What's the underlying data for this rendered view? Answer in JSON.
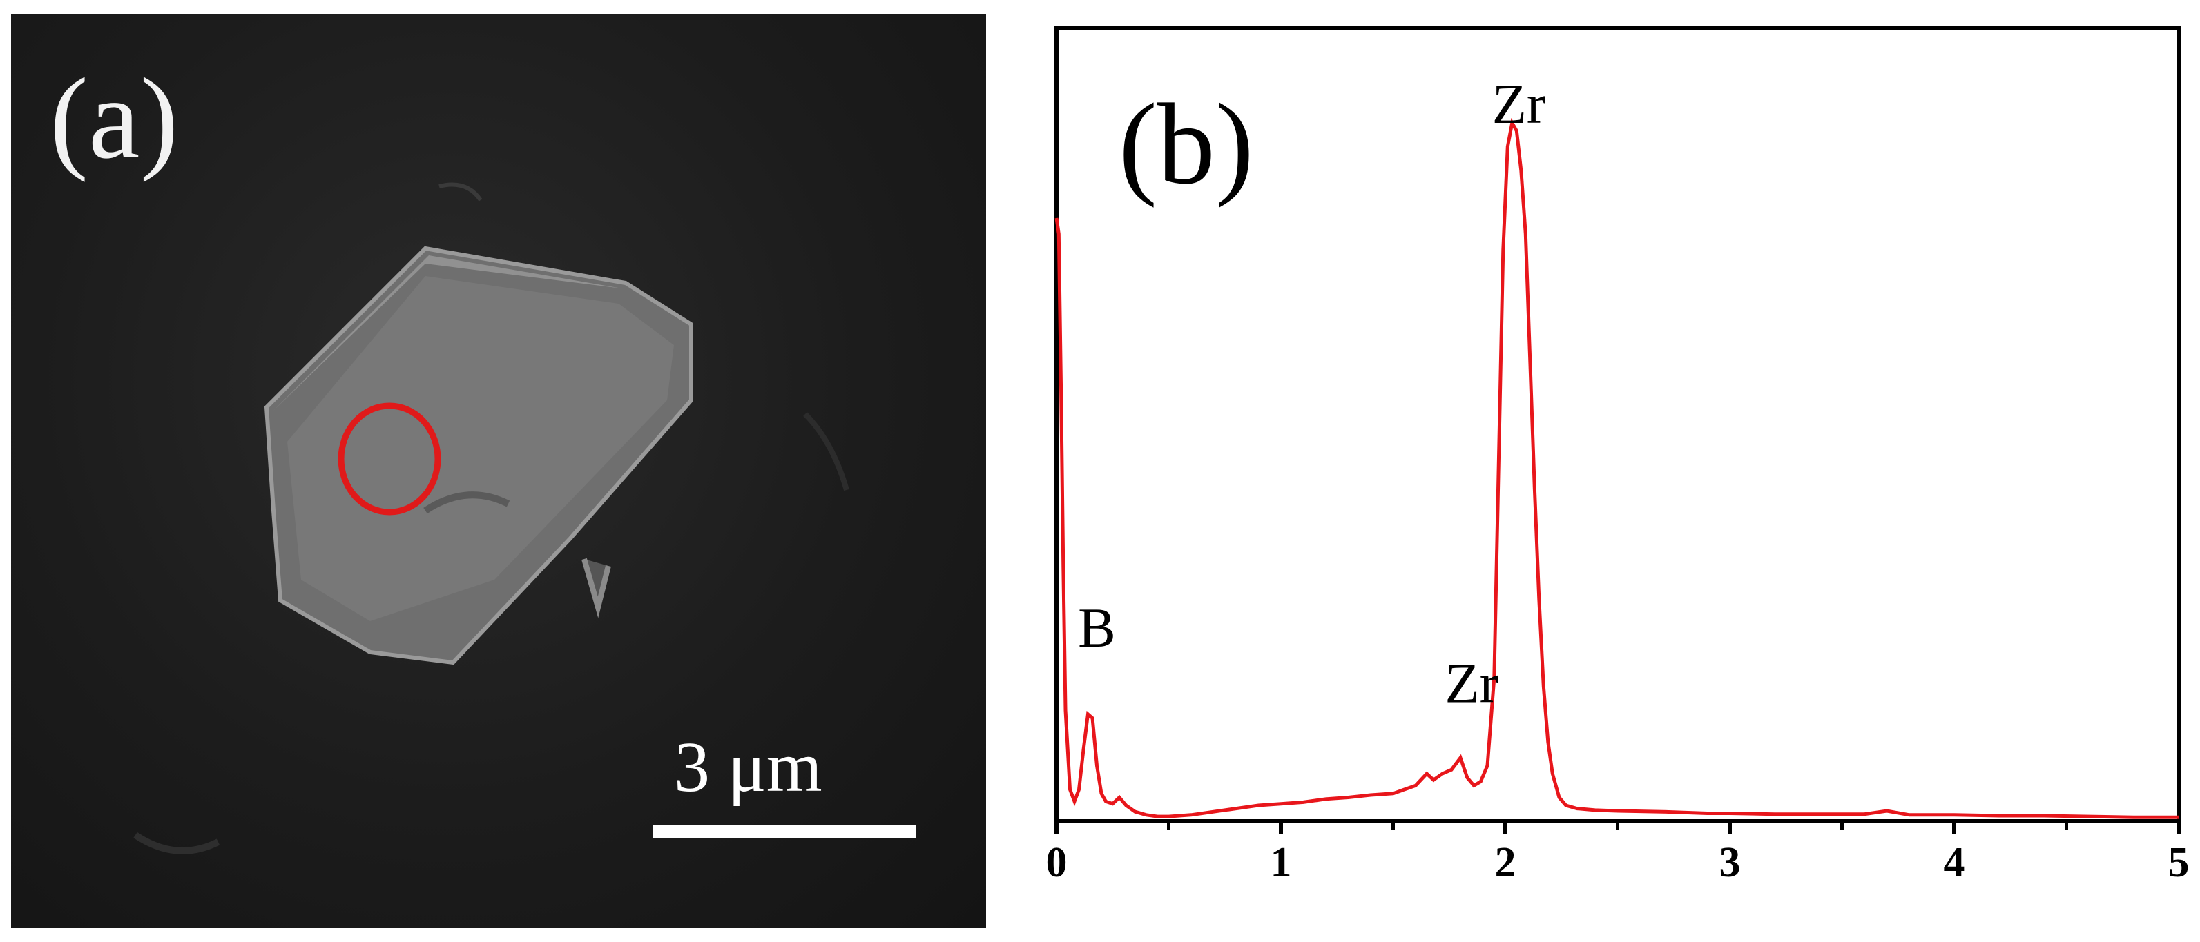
{
  "panel_a": {
    "label": "(a)",
    "scale_bar_text": "3 μm",
    "highlight_color": "#e01a1a"
  },
  "chart_data": {
    "type": "line",
    "panel_label": "(b)",
    "xlabel": "",
    "ylabel": "",
    "xlim": [
      0,
      5
    ],
    "ylim": [
      0,
      1.0
    ],
    "x_ticks": [
      "0",
      "1",
      "2",
      "3",
      "4",
      "5"
    ],
    "line_color": "#e8161b",
    "peak_labels": [
      {
        "text": "B",
        "x": 0.18,
        "y": 0.22
      },
      {
        "text": "Zr",
        "x": 1.85,
        "y": 0.15
      },
      {
        "text": "Zr",
        "x": 2.06,
        "y": 0.88
      }
    ],
    "series": [
      {
        "x": [
          0.0,
          0.01,
          0.02,
          0.03,
          0.04,
          0.06,
          0.08,
          0.1,
          0.12,
          0.14,
          0.16,
          0.18,
          0.2,
          0.22,
          0.25,
          0.28,
          0.31,
          0.35,
          0.4,
          0.45,
          0.5,
          0.6,
          0.7,
          0.8,
          0.9,
          1.0,
          1.1,
          1.2,
          1.3,
          1.4,
          1.5,
          1.55,
          1.6,
          1.65,
          1.68,
          1.72,
          1.76,
          1.8,
          1.83,
          1.86,
          1.89,
          1.92,
          1.95,
          1.97,
          1.99,
          2.01,
          2.03,
          2.05,
          2.07,
          2.09,
          2.11,
          2.13,
          2.15,
          2.17,
          2.19,
          2.21,
          2.24,
          2.27,
          2.32,
          2.4,
          2.5,
          2.7,
          2.9,
          3.0,
          3.2,
          3.4,
          3.6,
          3.7,
          3.8,
          4.0,
          4.2,
          4.4,
          4.6,
          4.8,
          5.0
        ],
        "y": [
          0.76,
          0.74,
          0.55,
          0.32,
          0.14,
          0.04,
          0.025,
          0.04,
          0.09,
          0.135,
          0.13,
          0.07,
          0.035,
          0.025,
          0.022,
          0.03,
          0.02,
          0.012,
          0.008,
          0.006,
          0.006,
          0.008,
          0.012,
          0.016,
          0.02,
          0.022,
          0.024,
          0.028,
          0.03,
          0.033,
          0.035,
          0.04,
          0.045,
          0.06,
          0.052,
          0.06,
          0.065,
          0.08,
          0.055,
          0.045,
          0.05,
          0.07,
          0.18,
          0.45,
          0.72,
          0.85,
          0.88,
          0.87,
          0.82,
          0.74,
          0.58,
          0.42,
          0.28,
          0.17,
          0.1,
          0.06,
          0.03,
          0.02,
          0.016,
          0.014,
          0.013,
          0.012,
          0.01,
          0.01,
          0.009,
          0.009,
          0.009,
          0.013,
          0.008,
          0.008,
          0.007,
          0.007,
          0.006,
          0.005,
          0.005
        ]
      }
    ]
  }
}
